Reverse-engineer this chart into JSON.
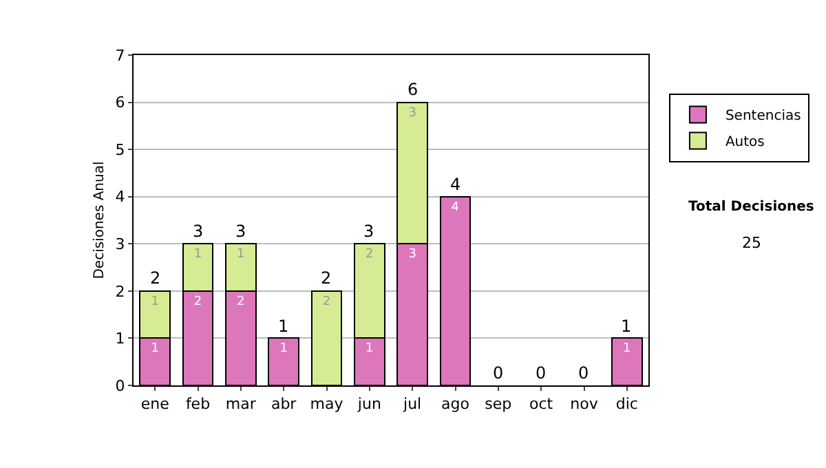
{
  "chart_data": {
    "type": "bar",
    "stacked": true,
    "ylabel": "Decisiones Anual",
    "categories": [
      "ene",
      "feb",
      "mar",
      "abr",
      "may",
      "jun",
      "jul",
      "ago",
      "sep",
      "oct",
      "nov",
      "dic"
    ],
    "series": [
      {
        "name": "Sentencias",
        "color": "#dd77bb",
        "values": [
          1,
          2,
          2,
          1,
          0,
          1,
          3,
          4,
          0,
          0,
          0,
          1
        ],
        "value_labels": [
          "1",
          "2",
          "2",
          "1",
          null,
          "1",
          "3",
          "4",
          null,
          null,
          null,
          "1"
        ]
      },
      {
        "name": "Autos",
        "color": "#d5ec94",
        "values": [
          1,
          1,
          1,
          0,
          2,
          2,
          3,
          0,
          0,
          0,
          0,
          0
        ],
        "value_labels": [
          "1",
          "1",
          "1",
          null,
          "2",
          "2",
          "3",
          null,
          null,
          null,
          null,
          null
        ]
      }
    ],
    "totals": [
      "2",
      "3",
      "3",
      "1",
      "2",
      "3",
      "6",
      "4",
      "0",
      "0",
      "0",
      "1"
    ],
    "ylim": [
      0,
      7
    ],
    "yticks": [
      0,
      1,
      2,
      3,
      4,
      5,
      6,
      7
    ],
    "grid": "y",
    "legend": "right",
    "annotations": [
      "Total Decisiones",
      "25"
    ]
  }
}
